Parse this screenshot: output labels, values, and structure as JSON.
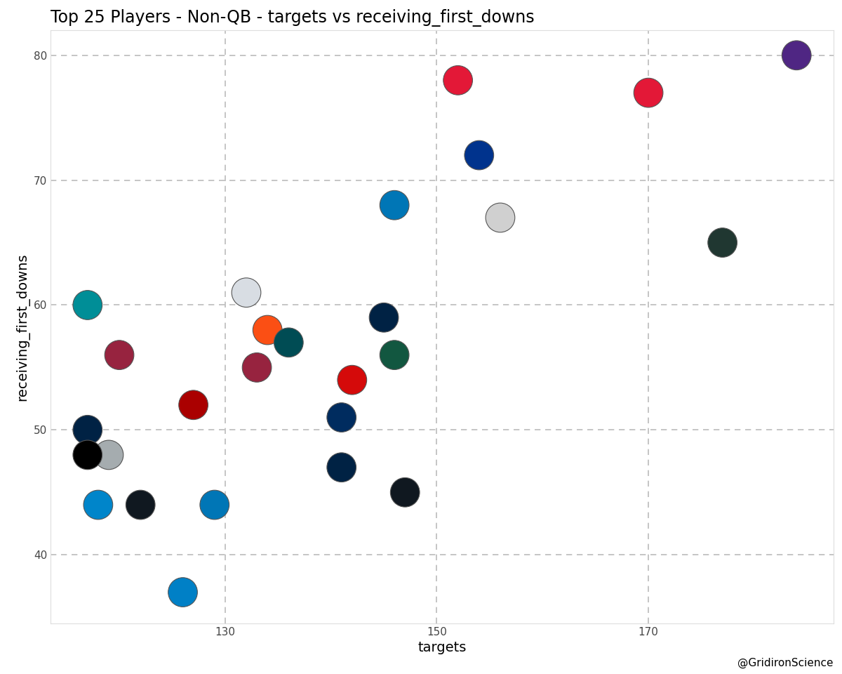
{
  "chart_data": {
    "type": "scatter",
    "title": "Top 25 Players - Non-QB - targets vs receiving_first_downs",
    "x_label": "targets",
    "y_label": "receiving_first_downs",
    "caption": "@GridironScience",
    "x": [
      184,
      152,
      170,
      154,
      146,
      156,
      177,
      117,
      132,
      145,
      134,
      136,
      146,
      120,
      133,
      142,
      127,
      141,
      117,
      119,
      117,
      141,
      147,
      118,
      122,
      129,
      126
    ],
    "values": [
      80,
      78,
      77,
      72,
      68,
      67,
      65,
      60,
      61,
      59,
      58,
      57,
      56,
      56,
      55,
      54,
      52,
      51,
      50,
      48,
      48,
      47,
      45,
      44,
      44,
      44,
      37
    ],
    "colors": [
      "#4f2683",
      "#e31837",
      "#e31837",
      "#00338d",
      "#0076b6",
      "#d0d0d0",
      "#203731",
      "#008e97",
      "#d8dde3",
      "#002244",
      "#fb4f14",
      "#004c54",
      "#125740",
      "#97233f",
      "#97233f",
      "#d50a0a",
      "#aa0000",
      "#002c5f",
      "#002244",
      "#a5acaf",
      "#000000",
      "#002244",
      "#101820",
      "#0085ca",
      "#101820",
      "#0076b6",
      "#0080c6"
    ],
    "marker": "o",
    "xlim": [
      113.5,
      187.5
    ],
    "ylim": [
      34.5,
      82
    ],
    "xticks": [
      130,
      150,
      170
    ],
    "yticks": [
      40,
      50,
      60,
      70,
      80
    ],
    "grid": true
  }
}
